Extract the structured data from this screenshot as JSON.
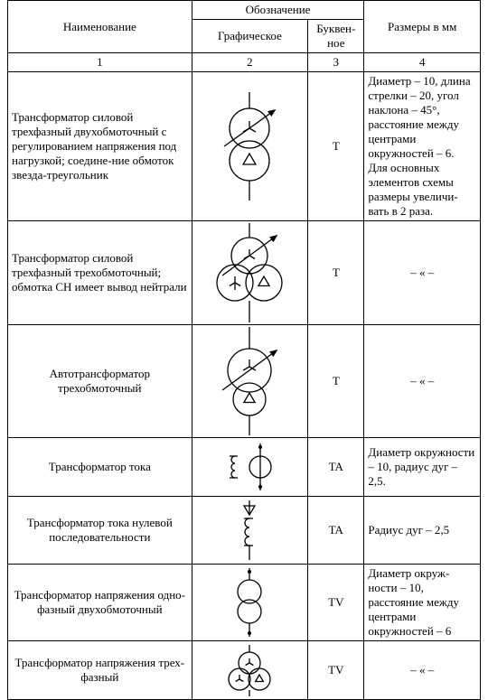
{
  "header": {
    "name": "Наименование",
    "designation": "Обозначение",
    "graphical": "Графическое",
    "letter": "Буквен-ное",
    "dimensions": "Размеры в мм",
    "n1": "1",
    "n2": "2",
    "n3": "3",
    "n4": "4"
  },
  "rows": [
    {
      "name": "Трансформатор силовой трехфазный двухобмоточный с регулированием напряжения под нагрузкой; соедине-ние обмоток звезда-треугольник",
      "letter": "T",
      "dim": "Диаметр – 10, длина стрелки – 20, угол наклона – 45°, расстояние между центрами окружностей – 6. Для основных элементов схемы размеры увеличи-вать в 2 раза.",
      "name_align": "left",
      "dim_align": "left",
      "symbol": "two-winding-wye-delta"
    },
    {
      "name": "Трансформатор силовой трехфазный трехобмоточный; обмотка СН имеет вывод нейтрали",
      "letter": "T",
      "dim": "– « –",
      "name_align": "left",
      "dim_align": "center",
      "symbol": "three-winding"
    },
    {
      "name": "Автотрансформатор трехобмоточный",
      "letter": "T",
      "dim": "– « –",
      "name_align": "center",
      "dim_align": "center",
      "symbol": "autotransformer"
    },
    {
      "name": "Трансформатор тока",
      "letter": "TA",
      "dim": "Диаметр окружности – 10, радиус дуг – 2,5.",
      "name_align": "center",
      "dim_align": "left",
      "symbol": "ct"
    },
    {
      "name": "Трансформатор тока нулевой последовательности",
      "letter": "TA",
      "dim": "Радиус дуг – 2,5",
      "name_align": "center",
      "dim_align": "left",
      "symbol": "ct-zero"
    },
    {
      "name": "Трансформатор напряжения одно-фазный двухобмоточный",
      "letter": "TV",
      "dim": "Диаметр окруж-ности – 10, расстояние между центрами окружностей – 6",
      "name_align": "center",
      "dim_align": "left",
      "symbol": "vt-1phase"
    },
    {
      "name": "Трансформатор напряжения трех-фазный",
      "letter": "TV",
      "dim": "– « –",
      "name_align": "center",
      "dim_align": "center",
      "symbol": "vt-3phase"
    }
  ],
  "style": {
    "stroke": "#000",
    "stroke_width": 1.3
  }
}
